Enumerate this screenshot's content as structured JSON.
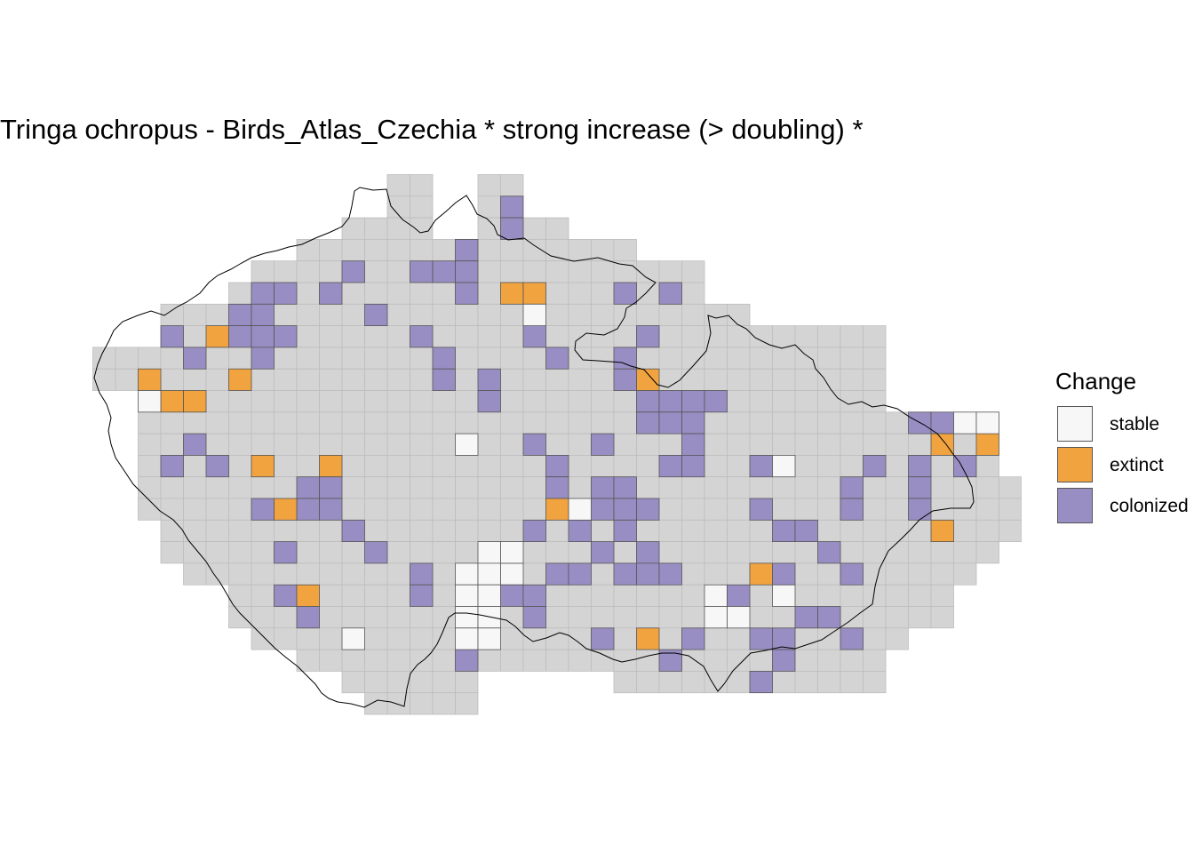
{
  "title": "Tringa ochropus - Birds_Atlas_Czechia * strong increase (> doubling) *",
  "legend": {
    "title": "Change",
    "items": [
      {
        "key": "stable",
        "label": "stable",
        "color": "#f7f7f7"
      },
      {
        "key": "extinct",
        "label": "extinct",
        "color": "#f1a340"
      },
      {
        "key": "colonized",
        "label": "colonized",
        "color": "#998ec3"
      }
    ]
  },
  "colors": {
    "grid_cell": "#d4d4d4",
    "grid_line": "#bdbdbd",
    "border_line": "#000000",
    "swatch_border": "#555555"
  },
  "map": {
    "row_spans": [
      [
        [
          15,
          16
        ],
        [
          19,
          20
        ]
      ],
      [
        [
          15,
          16
        ],
        [
          19,
          20
        ]
      ],
      [
        [
          13,
          16
        ],
        [
          19,
          22
        ]
      ],
      [
        [
          11,
          25
        ]
      ],
      [
        [
          9,
          28
        ]
      ],
      [
        [
          8,
          28
        ]
      ],
      [
        [
          5,
          30
        ]
      ],
      [
        [
          5,
          30
        ],
        [
          31,
          36
        ]
      ],
      [
        [
          2,
          36
        ]
      ],
      [
        [
          2,
          36
        ]
      ],
      [
        [
          4,
          36
        ]
      ],
      [
        [
          4,
          39
        ]
      ],
      [
        [
          4,
          40
        ]
      ],
      [
        [
          4,
          41
        ]
      ],
      [
        [
          4,
          42
        ]
      ],
      [
        [
          4,
          42
        ]
      ],
      [
        [
          5,
          43
        ]
      ],
      [
        [
          5,
          41
        ]
      ],
      [
        [
          6,
          40
        ]
      ],
      [
        [
          8,
          39
        ]
      ],
      [
        [
          8,
          39
        ]
      ],
      [
        [
          9,
          37
        ]
      ],
      [
        [
          11,
          36
        ]
      ],
      [
        [
          13,
          18
        ],
        [
          25,
          36
        ]
      ],
      [
        [
          14,
          18
        ]
      ]
    ],
    "cells": {
      "stable": [
        [
          21,
          6
        ],
        [
          4,
          10
        ],
        [
          18,
          12
        ],
        [
          32,
          13
        ],
        [
          23,
          15
        ],
        [
          19,
          17
        ],
        [
          20,
          17
        ],
        [
          18,
          18
        ],
        [
          19,
          18
        ],
        [
          20,
          18
        ],
        [
          18,
          19
        ],
        [
          19,
          19
        ],
        [
          29,
          19
        ],
        [
          32,
          19
        ],
        [
          18,
          20
        ],
        [
          19,
          20
        ],
        [
          29,
          20
        ],
        [
          30,
          20
        ],
        [
          13,
          21
        ],
        [
          18,
          21
        ],
        [
          19,
          21
        ],
        [
          40,
          11
        ],
        [
          41,
          11
        ]
      ],
      "extinct": [
        [
          20,
          5
        ],
        [
          21,
          5
        ],
        [
          7,
          7
        ],
        [
          4,
          9
        ],
        [
          8,
          9
        ],
        [
          26,
          9
        ],
        [
          5,
          10
        ],
        [
          6,
          10
        ],
        [
          9,
          13
        ],
        [
          12,
          13
        ],
        [
          10,
          15
        ],
        [
          22,
          15
        ],
        [
          39,
          16
        ],
        [
          31,
          18
        ],
        [
          11,
          19
        ],
        [
          26,
          21
        ],
        [
          39,
          12
        ],
        [
          41,
          12
        ]
      ],
      "colonized": [
        [
          20,
          1
        ],
        [
          20,
          2
        ],
        [
          18,
          3
        ],
        [
          13,
          4
        ],
        [
          16,
          4
        ],
        [
          17,
          4
        ],
        [
          18,
          4
        ],
        [
          9,
          5
        ],
        [
          10,
          5
        ],
        [
          12,
          5
        ],
        [
          18,
          5
        ],
        [
          25,
          5
        ],
        [
          27,
          5
        ],
        [
          8,
          6
        ],
        [
          9,
          6
        ],
        [
          14,
          6
        ],
        [
          8,
          7
        ],
        [
          9,
          7
        ],
        [
          10,
          7
        ],
        [
          16,
          7
        ],
        [
          21,
          7
        ],
        [
          26,
          7
        ],
        [
          5,
          7
        ],
        [
          6,
          8
        ],
        [
          9,
          8
        ],
        [
          17,
          8
        ],
        [
          22,
          8
        ],
        [
          25,
          8
        ],
        [
          17,
          9
        ],
        [
          19,
          9
        ],
        [
          25,
          9
        ],
        [
          19,
          10
        ],
        [
          26,
          10
        ],
        [
          27,
          10
        ],
        [
          28,
          10
        ],
        [
          29,
          10
        ],
        [
          26,
          11
        ],
        [
          27,
          11
        ],
        [
          28,
          11
        ],
        [
          38,
          11
        ],
        [
          39,
          11
        ],
        [
          40,
          11
        ],
        [
          6,
          12
        ],
        [
          21,
          12
        ],
        [
          24,
          12
        ],
        [
          28,
          12
        ],
        [
          39,
          12
        ],
        [
          5,
          13
        ],
        [
          7,
          13
        ],
        [
          12,
          13
        ],
        [
          22,
          13
        ],
        [
          27,
          13
        ],
        [
          28,
          13
        ],
        [
          31,
          13
        ],
        [
          36,
          13
        ],
        [
          38,
          13
        ],
        [
          40,
          13
        ],
        [
          38,
          14
        ],
        [
          11,
          14
        ],
        [
          12,
          14
        ],
        [
          22,
          14
        ],
        [
          24,
          14
        ],
        [
          25,
          14
        ],
        [
          35,
          14
        ],
        [
          9,
          15
        ],
        [
          11,
          15
        ],
        [
          12,
          15
        ],
        [
          24,
          15
        ],
        [
          25,
          15
        ],
        [
          26,
          15
        ],
        [
          31,
          15
        ],
        [
          35,
          15
        ],
        [
          38,
          15
        ],
        [
          13,
          16
        ],
        [
          21,
          16
        ],
        [
          23,
          16
        ],
        [
          25,
          16
        ],
        [
          32,
          16
        ],
        [
          33,
          16
        ],
        [
          10,
          17
        ],
        [
          14,
          17
        ],
        [
          24,
          17
        ],
        [
          26,
          17
        ],
        [
          34,
          17
        ],
        [
          16,
          18
        ],
        [
          20,
          18
        ],
        [
          22,
          18
        ],
        [
          23,
          18
        ],
        [
          25,
          18
        ],
        [
          26,
          18
        ],
        [
          27,
          18
        ],
        [
          32,
          18
        ],
        [
          35,
          18
        ],
        [
          16,
          19
        ],
        [
          20,
          19
        ],
        [
          21,
          19
        ],
        [
          10,
          19
        ],
        [
          29,
          19
        ],
        [
          30,
          19
        ],
        [
          21,
          20
        ],
        [
          11,
          20
        ],
        [
          33,
          20
        ],
        [
          34,
          20
        ],
        [
          24,
          21
        ],
        [
          28,
          21
        ],
        [
          31,
          21
        ],
        [
          32,
          21
        ],
        [
          35,
          21
        ],
        [
          18,
          22
        ],
        [
          27,
          22
        ],
        [
          32,
          22
        ],
        [
          31,
          23
        ]
      ]
    }
  }
}
